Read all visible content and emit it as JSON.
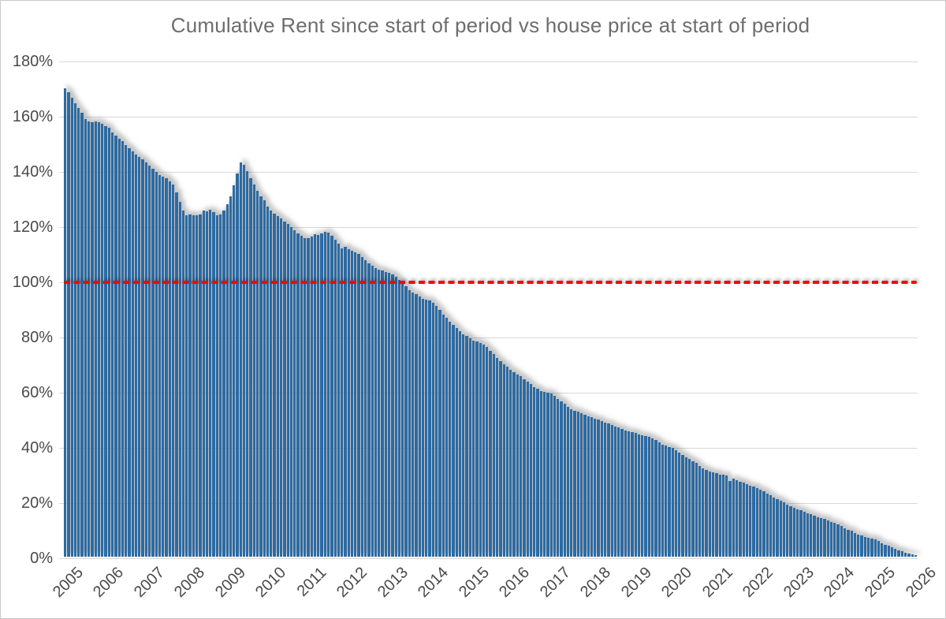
{
  "title": "Cumulative Rent since start of period vs house price at start of period",
  "colors": {
    "bar": "#2d6ba3",
    "gridline": "#d9d9d9",
    "title_text": "#6d6d6d",
    "axis_text": "#4a4a4a",
    "reference_line": "#ff0000",
    "chart_border": "#c9c9c9"
  },
  "y_axis": {
    "tick_labels": [
      "0%",
      "20%",
      "40%",
      "60%",
      "80%",
      "100%",
      "120%",
      "140%",
      "160%",
      "180%"
    ],
    "min": 0,
    "max": 180,
    "tick_interval": 20
  },
  "x_axis": {
    "tick_labels": [
      "2005",
      "2006",
      "2007",
      "2008",
      "2009",
      "2010",
      "2011",
      "2012",
      "2013",
      "2014",
      "2015",
      "2016",
      "2017",
      "2018",
      "2019",
      "2020",
      "2021",
      "2022",
      "2023",
      "2024",
      "2025",
      "2026"
    ]
  },
  "reference_line": {
    "value_percent": 100,
    "style": "dashed",
    "color": "#ff0000"
  },
  "chart_data": {
    "type": "bar",
    "title": "Cumulative Rent since start of period vs house price at start of period",
    "frequency": "monthly",
    "x_start": "2005-01",
    "x_end": "2026-01",
    "xlabel": "",
    "ylabel": "",
    "ylim": [
      0,
      180
    ],
    "y_ticks": [
      0,
      20,
      40,
      60,
      80,
      100,
      120,
      140,
      160,
      180
    ],
    "y_format": "percent",
    "grid": "horizontal",
    "legend": "none",
    "reference_line_y": 100,
    "year_labels": [
      2005,
      2006,
      2007,
      2008,
      2009,
      2010,
      2011,
      2012,
      2013,
      2014,
      2015,
      2016,
      2017,
      2018,
      2019,
      2020,
      2021,
      2022,
      2023,
      2024,
      2025,
      2026
    ],
    "values": [
      169.7,
      168.3,
      166.3,
      164.3,
      162.5,
      161.0,
      158.7,
      157.7,
      157.4,
      157.7,
      157.4,
      156.8,
      156.1,
      155.3,
      153.6,
      152.5,
      151.5,
      150.6,
      149.1,
      147.9,
      146.8,
      145.8,
      144.9,
      143.9,
      143.0,
      141.7,
      140.6,
      139.4,
      138.2,
      137.7,
      137.2,
      136.1,
      134.9,
      132.0,
      128.7,
      125.5,
      123.7,
      123.9,
      123.7,
      123.6,
      124.1,
      125.3,
      125.1,
      125.8,
      124.8,
      123.6,
      124.1,
      125.5,
      127.7,
      130.5,
      134.5,
      139.0,
      143.0,
      142.0,
      139.6,
      137.2,
      134.9,
      132.5,
      130.6,
      129.1,
      126.9,
      125.3,
      124.4,
      123.4,
      122.5,
      121.5,
      120.6,
      119.3,
      118.2,
      117.2,
      116.3,
      115.4,
      115.3,
      116.0,
      116.8,
      116.5,
      117.2,
      117.7,
      117.5,
      116.3,
      115.0,
      113.3,
      111.8,
      112.2,
      111.5,
      111.0,
      110.4,
      109.6,
      108.6,
      107.3,
      106.3,
      105.4,
      104.6,
      104.1,
      103.7,
      103.2,
      102.9,
      102.4,
      101.5,
      100.2,
      99.0,
      97.9,
      96.5,
      95.6,
      95.1,
      94.2,
      93.5,
      93.1,
      92.9,
      91.9,
      90.9,
      89.3,
      87.8,
      86.5,
      85.2,
      84.0,
      82.8,
      81.6,
      80.7,
      79.9,
      79.1,
      78.3,
      77.9,
      77.4,
      76.9,
      75.9,
      74.7,
      73.5,
      72.1,
      70.8,
      69.8,
      68.8,
      67.7,
      67.0,
      66.0,
      65.3,
      64.4,
      63.4,
      62.5,
      61.5,
      60.9,
      60.1,
      59.8,
      59.4,
      59.1,
      58.2,
      57.2,
      56.3,
      55.3,
      54.2,
      53.5,
      53.0,
      52.5,
      52.0,
      51.5,
      51.0,
      50.6,
      50.1,
      49.6,
      49.1,
      48.6,
      48.2,
      47.7,
      47.2,
      46.8,
      46.3,
      45.8,
      45.5,
      45.1,
      44.9,
      44.4,
      44.1,
      43.7,
      43.4,
      43.0,
      42.2,
      41.3,
      40.7,
      40.2,
      39.8,
      39.4,
      38.5,
      37.7,
      36.8,
      35.9,
      35.3,
      34.6,
      33.9,
      33.0,
      32.1,
      31.4,
      30.9,
      30.6,
      30.2,
      29.8,
      29.6,
      29.3,
      27.4,
      28.2,
      27.7,
      27.2,
      26.8,
      26.3,
      25.8,
      25.4,
      24.9,
      24.4,
      23.7,
      23.0,
      22.2,
      21.5,
      20.9,
      20.3,
      19.6,
      18.9,
      18.3,
      17.7,
      17.2,
      16.8,
      16.3,
      15.8,
      15.3,
      14.9,
      14.4,
      13.9,
      13.6,
      13.1,
      12.7,
      12.3,
      11.7,
      11.1,
      10.4,
      9.8,
      9.3,
      8.7,
      8.1,
      7.6,
      7.1,
      6.8,
      6.5,
      6.2,
      5.6,
      5.0,
      4.4,
      3.9,
      3.4,
      2.9,
      2.4,
      1.9,
      1.5,
      1.2,
      0.9,
      0.6
    ]
  }
}
